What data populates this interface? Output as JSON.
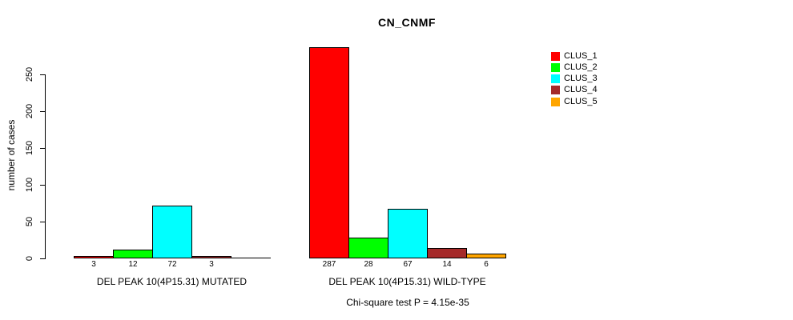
{
  "chart_data": {
    "type": "bar",
    "title": "CN_CNMF",
    "ylabel": "number of cases",
    "ylim": [
      0,
      290
    ],
    "yticks": [
      0,
      50,
      100,
      150,
      200,
      250
    ],
    "grid": false,
    "legend_position": "top-right",
    "clusters": [
      {
        "name": "CLUS_1",
        "color": "#ff0000"
      },
      {
        "name": "CLUS_2",
        "color": "#00ff00"
      },
      {
        "name": "CLUS_3",
        "color": "#00ffff"
      },
      {
        "name": "CLUS_4",
        "color": "#a52a2a"
      },
      {
        "name": "CLUS_5",
        "color": "#ffa500"
      }
    ],
    "groups": [
      {
        "label": "DEL PEAK 10(4P15.31) MUTATED",
        "values": [
          3,
          12,
          72,
          3,
          0
        ],
        "bar_labels": [
          "3",
          "12",
          "72",
          "3",
          ""
        ]
      },
      {
        "label": "DEL PEAK 10(4P15.31) WILD-TYPE",
        "values": [
          287,
          28,
          67,
          14,
          6
        ],
        "bar_labels": [
          "287",
          "28",
          "67",
          "14",
          "6"
        ]
      }
    ],
    "footnote": "Chi-square test P = 4.15e-35"
  }
}
